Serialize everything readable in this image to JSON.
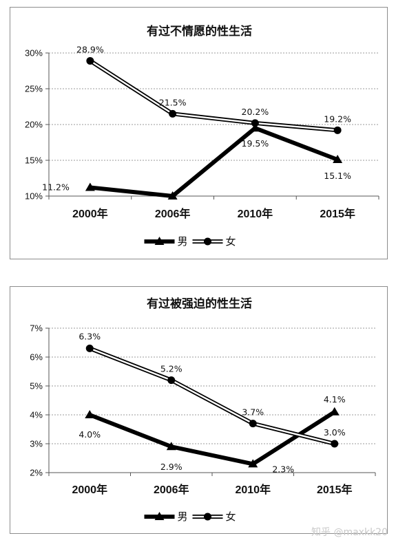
{
  "chart_data": [
    {
      "type": "line",
      "title": "有过不情愿的性生活",
      "categories": [
        "2000年",
        "2006年",
        "2010年",
        "2015年"
      ],
      "ylim": [
        10,
        30
      ],
      "yticks": [
        10,
        15,
        20,
        25,
        30
      ],
      "y_tick_suffix": "%",
      "grid": true,
      "legend_position": "bottom",
      "series": [
        {
          "name": "男",
          "values": [
            11.2,
            10.0,
            19.5,
            15.1
          ],
          "labels": [
            "11.2%",
            "",
            "19.5%",
            "15.1%"
          ],
          "marker": "triangle",
          "style": "thick-black"
        },
        {
          "name": "女",
          "values": [
            28.9,
            21.5,
            20.2,
            19.2
          ],
          "labels": [
            "28.9%",
            "21.5%",
            "20.2%",
            "19.2%"
          ],
          "marker": "circle",
          "style": "double-line"
        }
      ]
    },
    {
      "type": "line",
      "title": "有过被强迫的性生活",
      "categories": [
        "2000年",
        "2006年",
        "2010年",
        "2015年"
      ],
      "ylim": [
        2,
        7
      ],
      "yticks": [
        2,
        3,
        4,
        5,
        6,
        7
      ],
      "y_tick_suffix": "%",
      "grid": true,
      "legend_position": "bottom",
      "series": [
        {
          "name": "男",
          "values": [
            4.0,
            2.9,
            2.3,
            4.1
          ],
          "labels": [
            "4.0%",
            "2.9%",
            "2.3%",
            "4.1%"
          ],
          "marker": "triangle",
          "style": "thick-black"
        },
        {
          "name": "女",
          "values": [
            6.3,
            5.2,
            3.7,
            3.0
          ],
          "labels": [
            "6.3%",
            "5.2%",
            "3.7%",
            "3.0%"
          ],
          "marker": "circle",
          "style": "double-line"
        }
      ]
    }
  ],
  "watermark": "知乎 @maxkk20"
}
